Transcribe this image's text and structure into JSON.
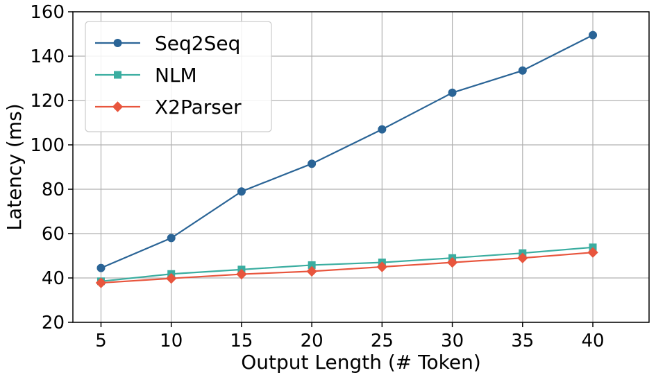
{
  "chart_data": {
    "type": "line",
    "title": "",
    "xlabel": "Output Length (# Token)",
    "ylabel": "Latency (ms)",
    "x": [
      5,
      10,
      15,
      20,
      25,
      30,
      35,
      40
    ],
    "xlim": [
      3,
      44
    ],
    "ylim": [
      20,
      160
    ],
    "xticks": [
      5,
      10,
      15,
      20,
      25,
      30,
      35,
      40
    ],
    "yticks": [
      20,
      40,
      60,
      80,
      100,
      120,
      140,
      160
    ],
    "grid": true,
    "legend_position": "top-left",
    "series": [
      {
        "name": "Seq2Seq",
        "color": "#2a6496",
        "marker": "circle",
        "values": [
          44.5,
          58.0,
          79.0,
          91.5,
          107.0,
          123.5,
          133.5,
          149.5
        ]
      },
      {
        "name": "NLM",
        "color": "#3aada0",
        "marker": "square",
        "values": [
          38.5,
          41.8,
          43.8,
          45.8,
          47.0,
          49.0,
          51.2,
          53.8
        ]
      },
      {
        "name": "X2Parser",
        "color": "#e8553d",
        "marker": "diamond",
        "values": [
          37.8,
          39.8,
          41.7,
          43.0,
          45.0,
          47.0,
          49.0,
          51.5
        ]
      }
    ]
  }
}
